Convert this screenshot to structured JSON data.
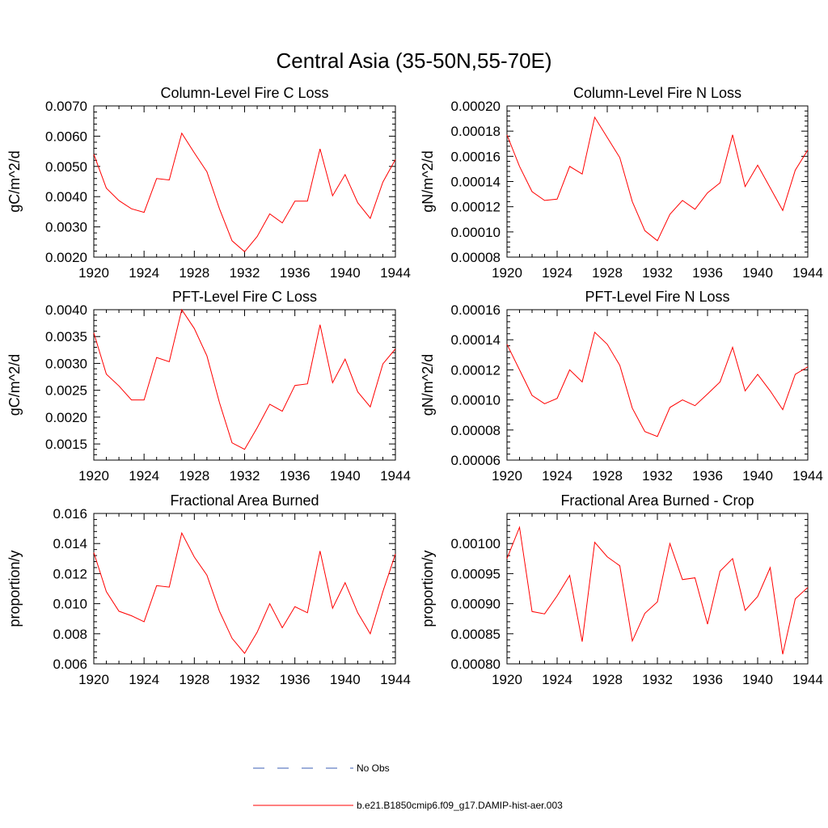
{
  "figure": {
    "title": "Central Asia (35-50N,55-70E)"
  },
  "colors": {
    "series": "#ff0000",
    "no_obs": "#3b5fb6",
    "axes": "#000000",
    "background": "#ffffff"
  },
  "legend": {
    "placement": "bottom",
    "items": [
      {
        "label": "No Obs",
        "style": "dashed",
        "color": "#3b5fb6"
      },
      {
        "label": "b.e21.B1850cmip6.f09_g17.DAMIP-hist-aer.003",
        "style": "solid",
        "color": "#ff0000"
      }
    ]
  },
  "chart_data": [
    {
      "type": "line",
      "title": "Column-Level Fire C Loss",
      "ylabel": "gC/m^2/d",
      "xlim": [
        1920,
        1944
      ],
      "ylim": [
        0.002,
        0.007
      ],
      "xticks": [
        "1920",
        "1924",
        "1928",
        "1932",
        "1936",
        "1940",
        "1944"
      ],
      "yticks": [
        "0.0020",
        "0.0030",
        "0.0040",
        "0.0050",
        "0.0060",
        "0.0070"
      ],
      "ytick_values": [
        0.002,
        0.003,
        0.004,
        0.005,
        0.006,
        0.007
      ],
      "x": [
        1920,
        1921,
        1922,
        1923,
        1924,
        1925,
        1926,
        1927,
        1928,
        1929,
        1930,
        1931,
        1932,
        1933,
        1934,
        1935,
        1936,
        1937,
        1938,
        1939,
        1940,
        1941,
        1942,
        1943,
        1944
      ],
      "series": [
        {
          "values": [
            0.0054,
            0.00428,
            0.00387,
            0.0036,
            0.00348,
            0.0046,
            0.00455,
            0.0061,
            0.00545,
            0.00482,
            0.0036,
            0.00254,
            0.00218,
            0.00268,
            0.00343,
            0.00313,
            0.00385,
            0.00385,
            0.00558,
            0.00403,
            0.00473,
            0.0038,
            0.00328,
            0.00448,
            0.00523
          ]
        }
      ]
    },
    {
      "type": "line",
      "title": "Column-Level Fire N Loss",
      "ylabel": "gN/m^2/d",
      "xlim": [
        1920,
        1944
      ],
      "ylim": [
        8e-05,
        0.0002
      ],
      "xticks": [
        "1920",
        "1924",
        "1928",
        "1932",
        "1936",
        "1940",
        "1944"
      ],
      "yticks": [
        "0.00008",
        "0.00010",
        "0.00012",
        "0.00014",
        "0.00016",
        "0.00018",
        "0.00020"
      ],
      "ytick_values": [
        8e-05,
        0.0001,
        0.00012,
        0.00014,
        0.00016,
        0.00018,
        0.0002
      ],
      "x": [
        1920,
        1921,
        1922,
        1923,
        1924,
        1925,
        1926,
        1927,
        1928,
        1929,
        1930,
        1931,
        1932,
        1933,
        1934,
        1935,
        1936,
        1937,
        1938,
        1939,
        1940,
        1941,
        1942,
        1943,
        1944
      ],
      "series": [
        {
          "values": [
            0.000177,
            0.000152,
            0.000132,
            0.000125,
            0.000126,
            0.000152,
            0.000146,
            0.000191,
            0.000175,
            0.000159,
            0.000124,
            0.000101,
            9.3e-05,
            0.000114,
            0.000125,
            0.000118,
            0.000131,
            0.000139,
            0.000177,
            0.000136,
            0.000153,
            0.000135,
            0.000117,
            0.000149,
            0.000165
          ]
        }
      ]
    },
    {
      "type": "line",
      "title": "PFT-Level Fire C Loss",
      "ylabel": "gC/m^2/d",
      "xlim": [
        1920,
        1944
      ],
      "ylim": [
        0.0012,
        0.004
      ],
      "xticks": [
        "1920",
        "1924",
        "1928",
        "1932",
        "1936",
        "1940",
        "1944"
      ],
      "yticks": [
        "0.0015",
        "0.0020",
        "0.0025",
        "0.0030",
        "0.0035",
        "0.0040"
      ],
      "ytick_values": [
        0.0015,
        0.002,
        0.0025,
        0.003,
        0.0035,
        0.004
      ],
      "x": [
        1920,
        1921,
        1922,
        1923,
        1924,
        1925,
        1926,
        1927,
        1928,
        1929,
        1930,
        1931,
        1932,
        1933,
        1934,
        1935,
        1936,
        1937,
        1938,
        1939,
        1940,
        1941,
        1942,
        1943,
        1944
      ],
      "series": [
        {
          "values": [
            0.00357,
            0.0028,
            0.00258,
            0.00232,
            0.00232,
            0.00311,
            0.00303,
            0.004,
            0.00365,
            0.00314,
            0.00227,
            0.00152,
            0.0014,
            0.0018,
            0.00224,
            0.00211,
            0.00259,
            0.00262,
            0.00372,
            0.00264,
            0.00308,
            0.00247,
            0.00219,
            0.00299,
            0.00327
          ]
        }
      ]
    },
    {
      "type": "line",
      "title": "PFT-Level Fire N Loss",
      "ylabel": "gN/m^2/d",
      "xlim": [
        1920,
        1944
      ],
      "ylim": [
        6e-05,
        0.00016
      ],
      "xticks": [
        "1920",
        "1924",
        "1928",
        "1932",
        "1936",
        "1940",
        "1944"
      ],
      "yticks": [
        "0.00006",
        "0.00008",
        "0.00010",
        "0.00012",
        "0.00014",
        "0.00016"
      ],
      "ytick_values": [
        6e-05,
        8e-05,
        0.0001,
        0.00012,
        0.00014,
        0.00016
      ],
      "x": [
        1920,
        1921,
        1922,
        1923,
        1924,
        1925,
        1926,
        1927,
        1928,
        1929,
        1930,
        1931,
        1932,
        1933,
        1934,
        1935,
        1936,
        1937,
        1938,
        1939,
        1940,
        1941,
        1942,
        1943,
        1944
      ],
      "series": [
        {
          "values": [
            0.000137,
            0.00012,
            0.000103,
            9.75e-05,
            0.000101,
            0.00012,
            0.000112,
            0.000145,
            0.000137,
            0.000123,
            9.45e-05,
            7.9e-05,
            7.57e-05,
            9.5e-05,
            0.0001,
            9.62e-05,
            0.000104,
            0.000112,
            0.000135,
            0.000106,
            0.000117,
            0.000106,
            9.35e-05,
            0.000117,
            0.000122
          ]
        }
      ]
    },
    {
      "type": "line",
      "title": "Fractional Area Burned",
      "ylabel": "proportion/y",
      "xlim": [
        1920,
        1944
      ],
      "ylim": [
        0.006,
        0.016
      ],
      "xticks": [
        "1920",
        "1924",
        "1928",
        "1932",
        "1936",
        "1940",
        "1944"
      ],
      "yticks": [
        "0.006",
        "0.008",
        "0.010",
        "0.012",
        "0.014",
        "0.016"
      ],
      "ytick_values": [
        0.006,
        0.008,
        0.01,
        0.012,
        0.014,
        0.016
      ],
      "x": [
        1920,
        1921,
        1922,
        1923,
        1924,
        1925,
        1926,
        1927,
        1928,
        1929,
        1930,
        1931,
        1932,
        1933,
        1934,
        1935,
        1936,
        1937,
        1938,
        1939,
        1940,
        1941,
        1942,
        1943,
        1944
      ],
      "series": [
        {
          "values": [
            0.0134,
            0.0108,
            0.0095,
            0.0092,
            0.0088,
            0.0112,
            0.0111,
            0.0147,
            0.0131,
            0.0119,
            0.0095,
            0.0077,
            0.0067,
            0.0081,
            0.01,
            0.0084,
            0.0098,
            0.0094,
            0.0135,
            0.0097,
            0.0114,
            0.0094,
            0.008,
            0.0108,
            0.0133
          ]
        }
      ]
    },
    {
      "type": "line",
      "title": "Fractional Area Burned - Crop",
      "ylabel": "proportion/y",
      "xlim": [
        1920,
        1944
      ],
      "ylim": [
        0.0008,
        0.00105
      ],
      "xticks": [
        "1920",
        "1924",
        "1928",
        "1932",
        "1936",
        "1940",
        "1944"
      ],
      "yticks": [
        "0.00080",
        "0.00085",
        "0.00090",
        "0.00095",
        "0.00100"
      ],
      "ytick_values": [
        0.0008,
        0.00085,
        0.0009,
        0.00095,
        0.001
      ],
      "x": [
        1920,
        1921,
        1922,
        1923,
        1924,
        1925,
        1926,
        1927,
        1928,
        1929,
        1930,
        1931,
        1932,
        1933,
        1934,
        1935,
        1936,
        1937,
        1938,
        1939,
        1940,
        1941,
        1942,
        1943,
        1944
      ],
      "series": [
        {
          "values": [
            0.000975,
            0.001027,
            0.000887,
            0.000883,
            0.000913,
            0.000947,
            0.000837,
            0.001002,
            0.000978,
            0.000963,
            0.000838,
            0.000884,
            0.000903,
            0.001,
            0.00094,
            0.000943,
            0.000866,
            0.000954,
            0.000975,
            0.000889,
            0.000912,
            0.00096,
            0.000816,
            0.000908,
            0.000927
          ]
        }
      ]
    }
  ]
}
